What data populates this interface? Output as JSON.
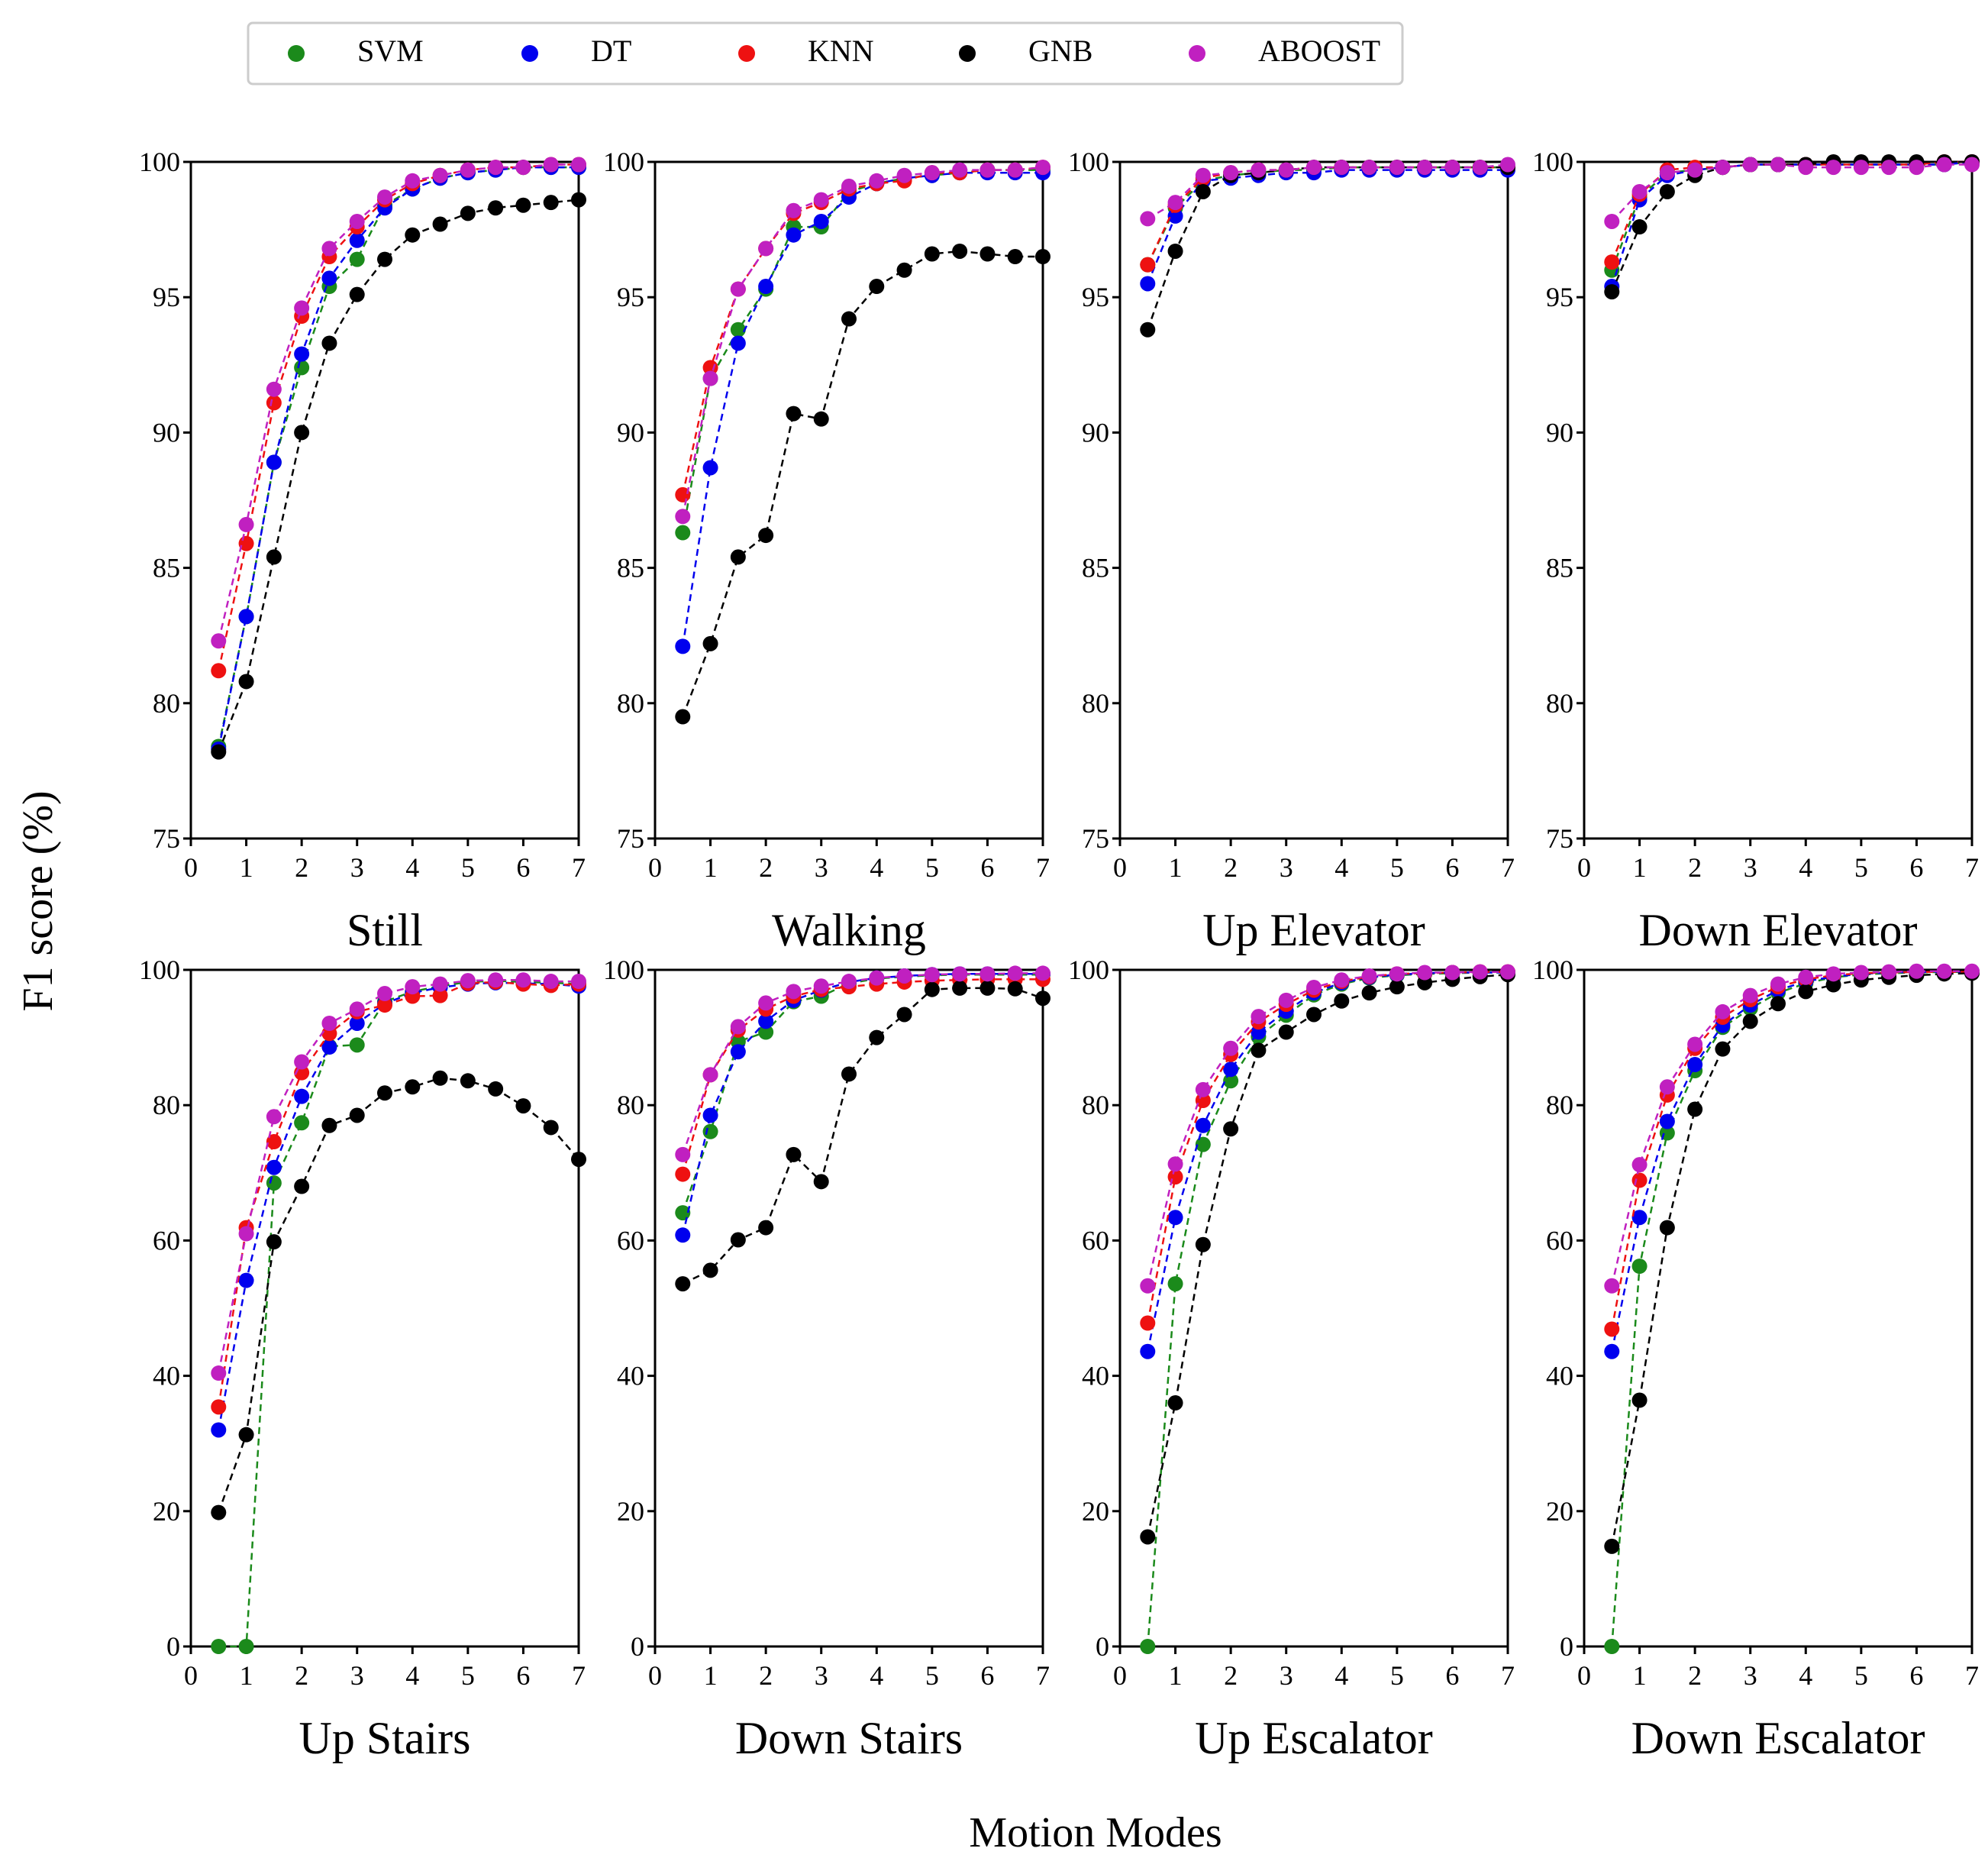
{
  "figure": {
    "ylabel": "F1 score (%)",
    "xlabel": "Motion Modes"
  },
  "legend": [
    {
      "name": "SVM",
      "color": "#1b8a1b"
    },
    {
      "name": "DT",
      "color": "#0000ee"
    },
    {
      "name": "KNN",
      "color": "#ee1111"
    },
    {
      "name": "GNB",
      "color": "#000000"
    },
    {
      "name": "ABOOST",
      "color": "#c020c0"
    }
  ],
  "chart_data": [
    {
      "type": "line",
      "title": "Still",
      "x": [
        0.5,
        1,
        1.5,
        2,
        2.5,
        3,
        3.5,
        4,
        4.5,
        5,
        5.5,
        6,
        6.5,
        7
      ],
      "xlim": [
        0,
        7
      ],
      "ylim": [
        75,
        100
      ],
      "yticks": [
        75,
        80,
        85,
        90,
        95,
        100
      ],
      "xticks": [
        0,
        1,
        2,
        3,
        4,
        5,
        6,
        7
      ],
      "series": [
        {
          "name": "SVM",
          "values": [
            78.4,
            83.2,
            88.9,
            92.4,
            95.4,
            96.4,
            98.4,
            99.0,
            99.4,
            99.6,
            99.7,
            99.8,
            99.8,
            99.8
          ]
        },
        {
          "name": "DT",
          "values": [
            78.3,
            83.2,
            88.9,
            92.9,
            95.7,
            97.1,
            98.3,
            99.0,
            99.4,
            99.6,
            99.7,
            99.8,
            99.8,
            99.8
          ]
        },
        {
          "name": "KNN",
          "values": [
            81.2,
            85.9,
            91.1,
            94.3,
            96.5,
            97.6,
            98.6,
            99.2,
            99.5,
            99.7,
            99.8,
            99.8,
            99.9,
            99.9
          ]
        },
        {
          "name": "GNB",
          "values": [
            78.2,
            80.8,
            85.4,
            90.0,
            93.3,
            95.1,
            96.4,
            97.3,
            97.7,
            98.1,
            98.3,
            98.4,
            98.5,
            98.6
          ]
        },
        {
          "name": "ABOOST",
          "values": [
            82.3,
            86.6,
            91.6,
            94.6,
            96.8,
            97.8,
            98.7,
            99.3,
            99.5,
            99.7,
            99.8,
            99.8,
            99.9,
            99.9
          ]
        }
      ]
    },
    {
      "type": "line",
      "title": "Walking",
      "x": [
        0.5,
        1,
        1.5,
        2,
        2.5,
        3,
        3.5,
        4,
        4.5,
        5,
        5.5,
        6,
        6.5,
        7
      ],
      "xlim": [
        0,
        7
      ],
      "ylim": [
        75,
        100
      ],
      "yticks": [
        75,
        80,
        85,
        90,
        95,
        100
      ],
      "xticks": [
        0,
        1,
        2,
        3,
        4,
        5,
        6,
        7
      ],
      "series": [
        {
          "name": "SVM",
          "values": [
            86.3,
            92.0,
            93.8,
            95.3,
            97.6,
            97.6,
            98.9,
            99.2,
            99.4,
            99.5,
            99.6,
            99.7,
            99.7,
            99.7
          ]
        },
        {
          "name": "DT",
          "values": [
            82.1,
            88.7,
            93.3,
            95.4,
            97.3,
            97.8,
            98.7,
            99.2,
            99.4,
            99.5,
            99.6,
            99.6,
            99.6,
            99.6
          ]
        },
        {
          "name": "KNN",
          "values": [
            87.7,
            92.4,
            95.3,
            96.8,
            98.1,
            98.5,
            99.0,
            99.2,
            99.3,
            99.6,
            99.6,
            99.7,
            99.7,
            99.8
          ]
        },
        {
          "name": "GNB",
          "values": [
            79.5,
            82.2,
            85.4,
            86.2,
            90.7,
            90.5,
            94.2,
            95.4,
            96.0,
            96.6,
            96.7,
            96.6,
            96.5,
            96.5
          ]
        },
        {
          "name": "ABOOST",
          "values": [
            86.9,
            92.0,
            95.3,
            96.8,
            98.2,
            98.6,
            99.1,
            99.3,
            99.5,
            99.6,
            99.7,
            99.7,
            99.7,
            99.8
          ]
        }
      ]
    },
    {
      "type": "line",
      "title": "Up Elevator",
      "x": [
        0.5,
        1,
        1.5,
        2,
        2.5,
        3,
        3.5,
        4,
        4.5,
        5,
        5.5,
        6,
        6.5,
        7
      ],
      "xlim": [
        0,
        7
      ],
      "ylim": [
        75,
        100
      ],
      "yticks": [
        75,
        80,
        85,
        90,
        95,
        100
      ],
      "xticks": [
        0,
        1,
        2,
        3,
        4,
        5,
        6,
        7
      ],
      "series": [
        {
          "name": "SVM",
          "values": [
            96.2,
            98.3,
            99.3,
            99.5,
            99.6,
            99.7,
            99.7,
            99.8,
            99.8,
            99.8,
            99.8,
            99.8,
            99.8,
            99.8
          ]
        },
        {
          "name": "DT",
          "values": [
            95.5,
            98.0,
            99.3,
            99.4,
            99.5,
            99.6,
            99.6,
            99.7,
            99.7,
            99.7,
            99.7,
            99.7,
            99.7,
            99.7
          ]
        },
        {
          "name": "KNN",
          "values": [
            96.2,
            98.4,
            99.4,
            99.6,
            99.7,
            99.7,
            99.8,
            99.8,
            99.8,
            99.8,
            99.8,
            99.8,
            99.8,
            99.8
          ]
        },
        {
          "name": "GNB",
          "values": [
            93.8,
            96.7,
            98.9,
            99.5,
            99.6,
            99.7,
            99.8,
            99.8,
            99.8,
            99.8,
            99.8,
            99.8,
            99.8,
            99.8
          ]
        },
        {
          "name": "ABOOST",
          "values": [
            97.9,
            98.5,
            99.5,
            99.6,
            99.7,
            99.7,
            99.8,
            99.8,
            99.8,
            99.8,
            99.8,
            99.8,
            99.8,
            99.9
          ]
        }
      ]
    },
    {
      "type": "line",
      "title": "Down Elevator",
      "x": [
        0.5,
        1,
        1.5,
        2,
        2.5,
        3,
        3.5,
        4,
        4.5,
        5,
        5.5,
        6,
        6.5,
        7
      ],
      "xlim": [
        0,
        7
      ],
      "ylim": [
        75,
        100
      ],
      "yticks": [
        75,
        80,
        85,
        90,
        95,
        100
      ],
      "xticks": [
        0,
        1,
        2,
        3,
        4,
        5,
        6,
        7
      ],
      "series": [
        {
          "name": "SVM",
          "values": [
            96.0,
            98.7,
            99.6,
            99.7,
            99.8,
            99.9,
            99.9,
            99.9,
            99.9,
            99.9,
            99.9,
            99.9,
            99.9,
            100.0
          ]
        },
        {
          "name": "DT",
          "values": [
            95.4,
            98.6,
            99.5,
            99.7,
            99.8,
            99.9,
            99.9,
            99.9,
            99.9,
            99.9,
            99.9,
            99.9,
            99.9,
            100.0
          ]
        },
        {
          "name": "KNN",
          "values": [
            96.3,
            98.8,
            99.7,
            99.8,
            99.8,
            99.9,
            99.9,
            99.9,
            99.9,
            99.9,
            99.9,
            99.9,
            100.0,
            100.0
          ]
        },
        {
          "name": "GNB",
          "values": [
            95.2,
            97.6,
            98.9,
            99.5,
            99.8,
            99.9,
            99.9,
            99.9,
            100.0,
            100.0,
            100.0,
            100.0,
            100.0,
            100.0
          ]
        },
        {
          "name": "ABOOST",
          "values": [
            97.8,
            98.9,
            99.6,
            99.7,
            99.8,
            99.9,
            99.9,
            99.8,
            99.8,
            99.8,
            99.8,
            99.8,
            99.9,
            99.9
          ]
        }
      ]
    },
    {
      "type": "line",
      "title": "Up Stairs",
      "x": [
        0.5,
        1,
        1.5,
        2,
        2.5,
        3,
        3.5,
        4,
        4.5,
        5,
        5.5,
        6,
        6.5,
        7
      ],
      "xlim": [
        0,
        7
      ],
      "ylim": [
        0,
        100
      ],
      "yticks": [
        0,
        20,
        40,
        60,
        80,
        100
      ],
      "xticks": [
        0,
        1,
        2,
        3,
        4,
        5,
        6,
        7
      ],
      "series": [
        {
          "name": "SVM",
          "values": [
            0.0,
            0.0,
            68.5,
            77.4,
            88.7,
            88.9,
            95.3,
            96.8,
            97.6,
            98.2,
            98.4,
            98.2,
            98.1,
            97.9
          ]
        },
        {
          "name": "DT",
          "values": [
            32.0,
            54.1,
            70.8,
            81.3,
            88.6,
            92.1,
            95.0,
            96.6,
            97.4,
            97.9,
            98.1,
            98.0,
            97.9,
            97.6
          ]
        },
        {
          "name": "KNN",
          "values": [
            35.4,
            61.9,
            74.6,
            84.8,
            90.6,
            93.8,
            94.8,
            96.1,
            96.2,
            98.0,
            98.2,
            97.9,
            97.7,
            97.9
          ]
        },
        {
          "name": "GNB",
          "values": [
            19.8,
            31.3,
            59.8,
            68.0,
            77.0,
            78.5,
            81.8,
            82.7,
            84.0,
            83.6,
            82.4,
            79.9,
            76.7,
            72.0
          ]
        },
        {
          "name": "ABOOST",
          "values": [
            40.4,
            61.0,
            78.3,
            86.4,
            92.1,
            94.2,
            96.5,
            97.5,
            97.9,
            98.4,
            98.5,
            98.5,
            98.3,
            98.3
          ]
        }
      ]
    },
    {
      "type": "line",
      "title": "Down Stairs",
      "x": [
        0.5,
        1,
        1.5,
        2,
        2.5,
        3,
        3.5,
        4,
        4.5,
        5,
        5.5,
        6,
        6.5,
        7
      ],
      "xlim": [
        0,
        7
      ],
      "ylim": [
        0,
        100
      ],
      "yticks": [
        0,
        20,
        40,
        60,
        80,
        100
      ],
      "xticks": [
        0,
        1,
        2,
        3,
        4,
        5,
        6,
        7
      ],
      "series": [
        {
          "name": "SVM",
          "values": [
            64.1,
            76.1,
            89.4,
            90.8,
            95.3,
            96.1,
            98.0,
            98.7,
            99.0,
            99.2,
            99.3,
            99.3,
            99.3,
            99.3
          ]
        },
        {
          "name": "DT",
          "values": [
            60.8,
            78.5,
            87.9,
            92.4,
            95.5,
            97.0,
            98.2,
            98.8,
            99.1,
            99.3,
            99.4,
            99.4,
            99.4,
            99.4
          ]
        },
        {
          "name": "KNN",
          "values": [
            69.8,
            84.5,
            91.1,
            94.2,
            96.1,
            97.1,
            97.5,
            97.9,
            98.2,
            98.4,
            98.5,
            98.6,
            98.6,
            98.6
          ]
        },
        {
          "name": "GNB",
          "values": [
            53.6,
            55.6,
            60.1,
            61.9,
            72.7,
            68.7,
            84.6,
            90.0,
            93.4,
            97.1,
            97.3,
            97.3,
            97.2,
            95.8
          ]
        },
        {
          "name": "ABOOST",
          "values": [
            72.7,
            84.5,
            91.6,
            95.1,
            96.8,
            97.6,
            98.3,
            98.8,
            99.1,
            99.3,
            99.4,
            99.4,
            99.5,
            99.5
          ]
        }
      ]
    },
    {
      "type": "line",
      "title": "Up Escalator",
      "x": [
        0.5,
        1,
        1.5,
        2,
        2.5,
        3,
        3.5,
        4,
        4.5,
        5,
        5.5,
        6,
        6.5,
        7
      ],
      "xlim": [
        0,
        7
      ],
      "ylim": [
        0,
        100
      ],
      "yticks": [
        0,
        20,
        40,
        60,
        80,
        100
      ],
      "xticks": [
        0,
        1,
        2,
        3,
        4,
        5,
        6,
        7
      ],
      "series": [
        {
          "name": "SVM",
          "values": [
            0.0,
            53.6,
            74.2,
            83.6,
            90.1,
            93.3,
            96.3,
            97.9,
            98.8,
            99.2,
            99.4,
            99.5,
            99.6,
            99.6
          ]
        },
        {
          "name": "DT",
          "values": [
            43.6,
            63.4,
            77.0,
            85.3,
            90.8,
            93.9,
            96.6,
            98.1,
            98.9,
            99.3,
            99.5,
            99.6,
            99.6,
            99.6
          ]
        },
        {
          "name": "KNN",
          "values": [
            47.8,
            69.4,
            80.7,
            87.5,
            92.3,
            94.9,
            97.0,
            98.3,
            99.0,
            99.4,
            99.5,
            99.6,
            99.7,
            99.7
          ]
        },
        {
          "name": "GNB",
          "values": [
            16.2,
            36.0,
            59.4,
            76.5,
            88.1,
            90.8,
            93.4,
            95.4,
            96.6,
            97.5,
            98.1,
            98.6,
            99.0,
            99.3
          ]
        },
        {
          "name": "ABOOST",
          "values": [
            53.3,
            71.3,
            82.3,
            88.4,
            93.1,
            95.5,
            97.4,
            98.5,
            99.1,
            99.4,
            99.6,
            99.6,
            99.7,
            99.7
          ]
        }
      ]
    },
    {
      "type": "line",
      "title": "Down Escalator",
      "x": [
        0.5,
        1,
        1.5,
        2,
        2.5,
        3,
        3.5,
        4,
        4.5,
        5,
        5.5,
        6,
        6.5,
        7
      ],
      "xlim": [
        0,
        7
      ],
      "ylim": [
        0,
        100
      ],
      "yticks": [
        0,
        20,
        40,
        60,
        80,
        100
      ],
      "xticks": [
        0,
        1,
        2,
        3,
        4,
        5,
        6,
        7
      ],
      "series": [
        {
          "name": "SVM",
          "values": [
            0.0,
            56.2,
            75.9,
            85.1,
            91.5,
            94.3,
            96.6,
            98.0,
            98.9,
            99.3,
            99.5,
            99.6,
            99.7,
            99.7
          ]
        },
        {
          "name": "DT",
          "values": [
            43.6,
            63.4,
            77.6,
            86.0,
            91.8,
            94.8,
            97.0,
            98.3,
            99.0,
            99.4,
            99.6,
            99.7,
            99.7,
            99.7
          ]
        },
        {
          "name": "KNN",
          "values": [
            46.9,
            68.9,
            81.5,
            88.4,
            93.0,
            95.6,
            97.5,
            98.6,
            99.2,
            99.5,
            99.6,
            99.7,
            99.7,
            99.7
          ]
        },
        {
          "name": "GNB",
          "values": [
            14.8,
            36.4,
            61.9,
            79.4,
            88.3,
            92.4,
            95.0,
            96.8,
            97.8,
            98.5,
            98.9,
            99.2,
            99.4,
            99.5
          ]
        },
        {
          "name": "ABOOST",
          "values": [
            53.3,
            71.2,
            82.7,
            89.0,
            93.8,
            96.2,
            97.9,
            98.9,
            99.4,
            99.6,
            99.7,
            99.8,
            99.8,
            99.8
          ]
        }
      ]
    }
  ]
}
